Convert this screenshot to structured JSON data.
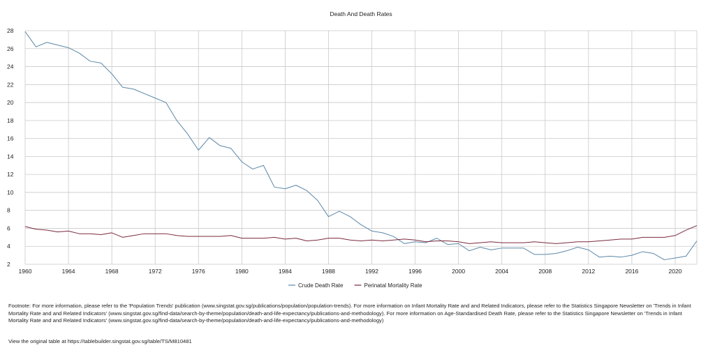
{
  "chart_data": {
    "type": "line",
    "title": "Death And Death Rates",
    "xlabel": "",
    "ylabel": "",
    "xlim": [
      1960,
      2022
    ],
    "ylim": [
      2,
      28
    ],
    "y_ticks": [
      2,
      4,
      6,
      8,
      10,
      12,
      14,
      16,
      18,
      20,
      22,
      24,
      26,
      28
    ],
    "x_ticks": [
      1960,
      1964,
      1968,
      1972,
      1976,
      1980,
      1984,
      1988,
      1992,
      1996,
      2000,
      2004,
      2008,
      2012,
      2016,
      2020
    ],
    "grid": true,
    "legend_position": "bottom",
    "series": [
      {
        "name": "Crude Death Rate",
        "color": "#5b87a8",
        "x": [
          1960,
          1961,
          1962,
          1963,
          1964,
          1965,
          1966,
          1967,
          1968,
          1969,
          1970,
          1971,
          1972,
          1973,
          1974,
          1975,
          1976,
          1977,
          1978,
          1979,
          1980,
          1981,
          1982,
          1983,
          1984,
          1985,
          1986,
          1987,
          1988,
          1989,
          1990,
          1991,
          1992,
          1993,
          1994,
          1995,
          1996,
          1997,
          1998,
          1999,
          2000,
          2001,
          2002,
          2003,
          2004,
          2005,
          2006,
          2007,
          2008,
          2009,
          2010,
          2011,
          2012,
          2013,
          2014,
          2015,
          2016,
          2017,
          2018,
          2019,
          2020,
          2021,
          2022
        ],
        "values": [
          27.9,
          26.2,
          26.7,
          26.4,
          26.1,
          25.5,
          24.6,
          24.4,
          23.2,
          21.7,
          21.5,
          21.0,
          20.5,
          20.0,
          18.0,
          16.5,
          14.7,
          16.1,
          15.2,
          14.9,
          13.4,
          12.6,
          13.0,
          10.6,
          10.4,
          10.8,
          10.2,
          9.1,
          7.3,
          7.9,
          7.3,
          6.4,
          5.7,
          5.5,
          5.1,
          4.3,
          4.5,
          4.4,
          4.9,
          4.2,
          4.3,
          3.5,
          3.9,
          3.6,
          3.8,
          3.8,
          3.8,
          3.1,
          3.1,
          3.2,
          3.5,
          3.9,
          3.6,
          2.8,
          2.9,
          2.8,
          3.0,
          3.4,
          3.2,
          2.5,
          2.7,
          2.9,
          4.6
        ]
      },
      {
        "name": "Perinatal Mortality Rate",
        "color": "#7a2a3e",
        "x": [
          1960,
          1961,
          1962,
          1963,
          1964,
          1965,
          1966,
          1967,
          1968,
          1969,
          1970,
          1971,
          1972,
          1973,
          1974,
          1975,
          1976,
          1977,
          1978,
          1979,
          1980,
          1981,
          1982,
          1983,
          1984,
          1985,
          1986,
          1987,
          1988,
          1989,
          1990,
          1991,
          1992,
          1993,
          1994,
          1995,
          1996,
          1997,
          1998,
          1999,
          2000,
          2001,
          2002,
          2003,
          2004,
          2005,
          2006,
          2007,
          2008,
          2009,
          2010,
          2011,
          2012,
          2013,
          2014,
          2015,
          2016,
          2017,
          2018,
          2019,
          2020,
          2021,
          2022
        ],
        "values": [
          6.2,
          5.9,
          5.8,
          5.6,
          5.7,
          5.4,
          5.4,
          5.3,
          5.5,
          5.0,
          5.2,
          5.4,
          5.4,
          5.4,
          5.2,
          5.1,
          5.1,
          5.1,
          5.1,
          5.2,
          4.9,
          4.9,
          4.9,
          5.0,
          4.8,
          4.9,
          4.6,
          4.7,
          4.9,
          4.9,
          4.7,
          4.6,
          4.7,
          4.6,
          4.7,
          4.8,
          4.7,
          4.5,
          4.6,
          4.6,
          4.5,
          4.3,
          4.4,
          4.5,
          4.4,
          4.4,
          4.4,
          4.5,
          4.4,
          4.3,
          4.4,
          4.5,
          4.5,
          4.6,
          4.7,
          4.8,
          4.8,
          5.0,
          5.0,
          5.0,
          5.2,
          5.8,
          6.3
        ]
      }
    ]
  },
  "footnote": "Footnote: For more information, please refer to the 'Population Trends' publication (www.singstat.gov.sg/publications/population/population-trends). For more information on Infant Mortality Rate and and Related Indicators, please refer to the Statistics Singapore Newsletter on 'Trends in Infant Mortality Rate and and Related Indicators' (www.singstat.gov.sg/find-data/search-by-theme/population/death-and-life-expectancy/publications-and-methodology). For more information on Age-Standardised Death Rate, please refer to the Statistics Singapore Newsletter on 'Trends in Infant Mortality Rate and and Related Indicators' (www.singstat.gov.sg/find-data/search-by-theme/population/death-and-life-expectancy/publications-and-methodology)",
  "source_text": "View the original table at https://tablebuilder.singstat.gov.sg/table/TS/M810481"
}
